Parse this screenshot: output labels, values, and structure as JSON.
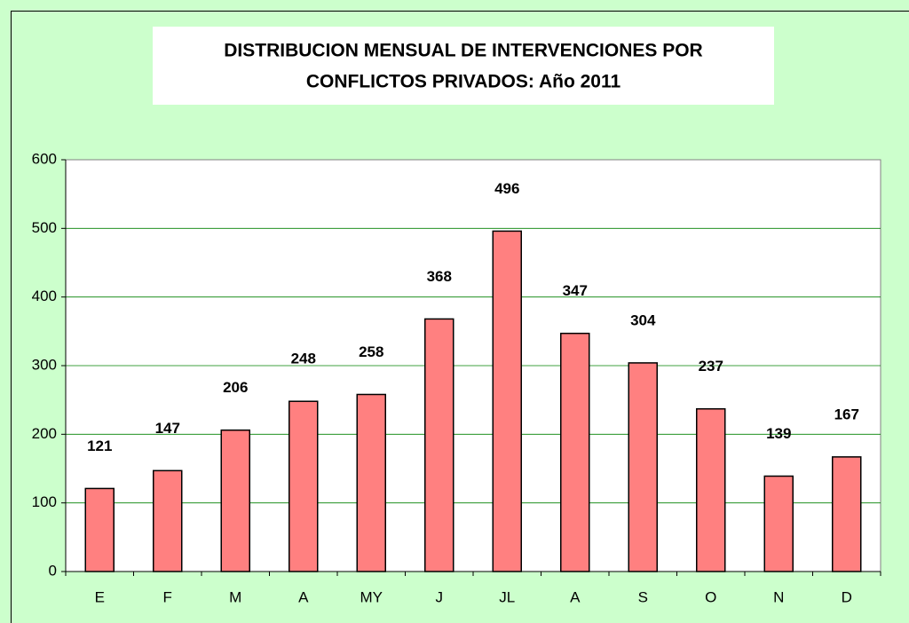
{
  "chart_data": {
    "type": "bar",
    "title": [
      "DISTRIBUCION MENSUAL DE INTERVENCIONES POR",
      "CONFLICTOS PRIVADOS:  Año 2011"
    ],
    "categories": [
      "E",
      "F",
      "M",
      "A",
      "MY",
      "J",
      "JL",
      "A",
      "S",
      "O",
      "N",
      "D"
    ],
    "values": [
      121,
      147,
      206,
      248,
      258,
      368,
      496,
      347,
      304,
      237,
      139,
      167
    ],
    "color": "#ff8080",
    "ylim": [
      0,
      600
    ],
    "yticks": [
      0,
      100,
      200,
      300,
      400,
      500,
      600
    ],
    "grid": true
  }
}
